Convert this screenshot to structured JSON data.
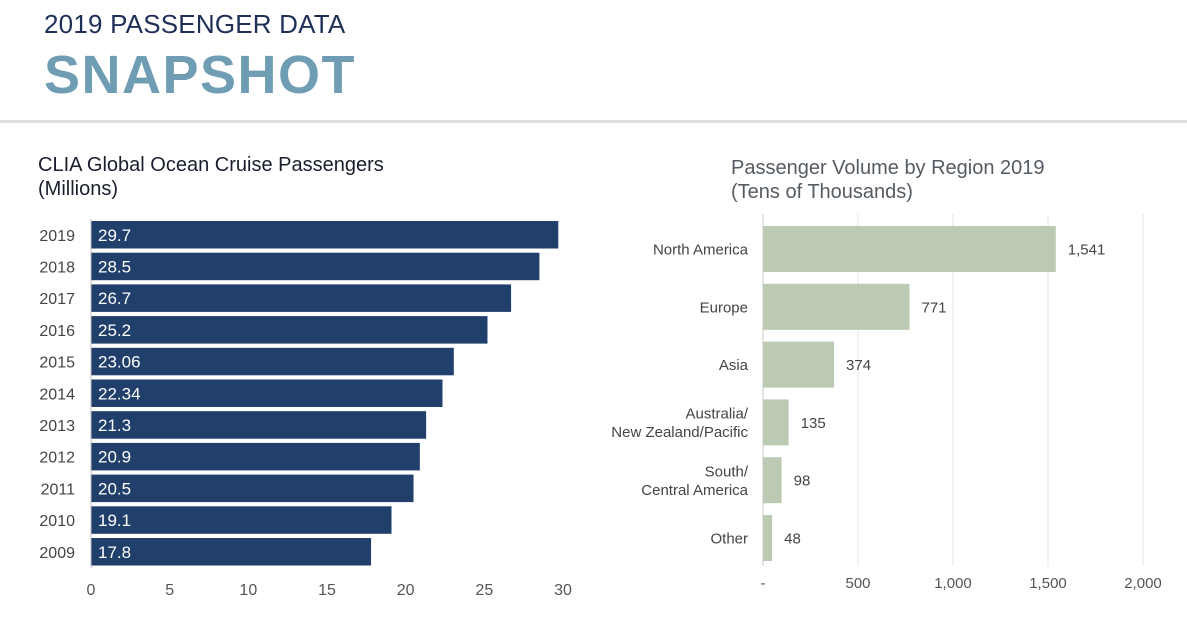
{
  "header": {
    "kicker": "2019 PASSENGER DATA",
    "title": "SNAPSHOT"
  },
  "colors": {
    "left_bar": "#203f6b",
    "right_bar": "#bcc9b3",
    "title_accent": "#6f9db3"
  },
  "chart_data": [
    {
      "type": "bar",
      "orientation": "horizontal",
      "title": "CLIA Global Ocean Cruise Passengers",
      "subtitle": "(Millions)",
      "categories": [
        "2019",
        "2018",
        "2017",
        "2016",
        "2015",
        "2014",
        "2013",
        "2012",
        "2011",
        "2010",
        "2009"
      ],
      "values": [
        29.7,
        28.5,
        26.7,
        25.2,
        23.06,
        22.34,
        21.3,
        20.9,
        20.5,
        19.1,
        17.8
      ],
      "value_labels": [
        "29.7",
        "28.5",
        "26.7",
        "25.2",
        "23.06",
        "22.34",
        "21.3",
        "20.9",
        "20.5",
        "19.1",
        "17.8"
      ],
      "xlim": [
        0,
        30
      ],
      "xticks": [
        "0",
        "5",
        "10",
        "15",
        "20",
        "25",
        "30"
      ],
      "grid": false
    },
    {
      "type": "bar",
      "orientation": "horizontal",
      "title": "Passenger Volume by Region 2019",
      "subtitle": "(Tens of Thousands)",
      "categories": [
        [
          "North America"
        ],
        [
          "Europe"
        ],
        [
          "Asia"
        ],
        [
          "Australia/",
          "New Zealand/Pacific"
        ],
        [
          "South/",
          "Central America"
        ],
        [
          "Other"
        ]
      ],
      "values": [
        1541,
        771,
        374,
        135,
        98,
        48
      ],
      "value_labels": [
        "1,541",
        "771",
        "374",
        "135",
        "98",
        "48"
      ],
      "xlim": [
        0,
        2000
      ],
      "xticks": [
        "-",
        "500",
        "1,000",
        "1,500",
        "2,000"
      ],
      "grid": true
    }
  ]
}
